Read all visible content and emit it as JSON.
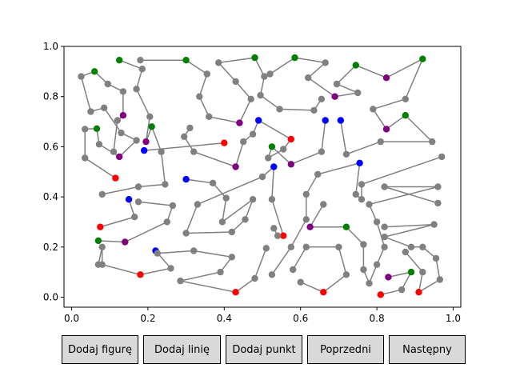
{
  "buttons": {
    "add_shape": "Dodaj figurę",
    "add_line": "Dodaj linię",
    "add_point": "Dodaj punkt",
    "prev": "Poprzedni",
    "next": "Następny"
  },
  "chart_data": {
    "type": "scatter",
    "title": "",
    "xlabel": "",
    "ylabel": "",
    "xlim": [
      -0.02,
      1.02
    ],
    "ylim": [
      -0.04,
      1.0
    ],
    "x_ticks": [
      "0.0",
      "0.2",
      "0.4",
      "0.6",
      "0.8",
      "1.0"
    ],
    "y_ticks": [
      "0.0",
      "0.2",
      "0.4",
      "0.6",
      "0.8",
      "1.0"
    ],
    "line_color": "#808080",
    "point_colors": {
      "k": "#808080",
      "g": "#008000",
      "p": "#800080",
      "r": "#ff0000",
      "b": "#0000ff"
    },
    "paths": [
      [
        [
          0.115,
          0.475,
          "r"
        ],
        [
          0.035,
          0.555,
          "k"
        ],
        [
          0.035,
          0.67,
          "k"
        ],
        [
          0.066,
          0.672,
          "g"
        ],
        [
          0.072,
          0.61,
          "k"
        ],
        [
          0.125,
          0.56,
          "p"
        ],
        [
          0.17,
          0.625,
          "k"
        ],
        [
          0.13,
          0.655,
          "k"
        ],
        [
          0.085,
          0.755,
          "k"
        ],
        [
          0.05,
          0.74,
          "k"
        ],
        [
          0.025,
          0.88,
          "k"
        ],
        [
          0.06,
          0.9,
          "g"
        ],
        [
          0.095,
          0.85,
          "k"
        ],
        [
          0.135,
          0.82,
          "k"
        ],
        [
          0.135,
          0.725,
          "p"
        ],
        [
          0.12,
          0.705,
          "k"
        ],
        [
          0.11,
          0.58,
          "k"
        ]
      ],
      [
        [
          0.125,
          0.945,
          "g"
        ],
        [
          0.185,
          0.91,
          "k"
        ],
        [
          0.17,
          0.83,
          "k"
        ],
        [
          0.205,
          0.72,
          "k"
        ],
        [
          0.195,
          0.62,
          "p"
        ],
        [
          0.21,
          0.68,
          "g"
        ],
        [
          0.235,
          0.58,
          "k"
        ],
        [
          0.245,
          0.45,
          "k"
        ],
        [
          0.175,
          0.44,
          "k"
        ],
        [
          0.08,
          0.41,
          "k"
        ]
      ],
      [
        [
          0.18,
          0.945,
          "k"
        ],
        [
          0.3,
          0.945,
          "g"
        ],
        [
          0.355,
          0.89,
          "k"
        ],
        [
          0.335,
          0.8,
          "k"
        ],
        [
          0.36,
          0.72,
          "k"
        ],
        [
          0.44,
          0.695,
          "p"
        ],
        [
          0.47,
          0.79,
          "k"
        ],
        [
          0.43,
          0.86,
          "k"
        ],
        [
          0.385,
          0.935,
          "k"
        ],
        [
          0.48,
          0.955,
          "g"
        ],
        [
          0.505,
          0.88,
          "k"
        ],
        [
          0.495,
          0.805,
          "k"
        ],
        [
          0.545,
          0.75,
          "k"
        ],
        [
          0.635,
          0.745,
          "k"
        ],
        [
          0.655,
          0.79,
          "k"
        ]
      ],
      [
        [
          0.52,
          0.89,
          "k"
        ],
        [
          0.585,
          0.955,
          "g"
        ],
        [
          0.665,
          0.935,
          "k"
        ],
        [
          0.62,
          0.875,
          "k"
        ],
        [
          0.69,
          0.8,
          "p"
        ],
        [
          0.75,
          0.815,
          "k"
        ],
        [
          0.695,
          0.85,
          "k"
        ],
        [
          0.745,
          0.925,
          "g"
        ],
        [
          0.825,
          0.875,
          "p"
        ],
        [
          0.92,
          0.95,
          "g"
        ],
        [
          0.875,
          0.79,
          "k"
        ],
        [
          0.79,
          0.75,
          "k"
        ],
        [
          0.825,
          0.67,
          "p"
        ],
        [
          0.875,
          0.725,
          "g"
        ],
        [
          0.945,
          0.62,
          "k"
        ],
        [
          0.81,
          0.62,
          "k"
        ],
        [
          0.72,
          0.57,
          "k"
        ],
        [
          0.705,
          0.705,
          "b"
        ]
      ],
      [
        [
          0.31,
          0.675,
          "k"
        ],
        [
          0.295,
          0.64,
          "k"
        ],
        [
          0.32,
          0.58,
          "k"
        ],
        [
          0.43,
          0.52,
          "p"
        ],
        [
          0.45,
          0.62,
          "k"
        ],
        [
          0.475,
          0.65,
          "k"
        ],
        [
          0.49,
          0.705,
          "b"
        ],
        [
          0.575,
          0.63,
          "r"
        ],
        [
          0.555,
          0.59,
          "k"
        ],
        [
          0.515,
          0.555,
          "k"
        ],
        [
          0.525,
          0.6,
          "g"
        ],
        [
          0.575,
          0.53,
          "p"
        ],
        [
          0.655,
          0.58,
          "k"
        ],
        [
          0.665,
          0.705,
          "b"
        ]
      ],
      [
        [
          0.19,
          0.585,
          "b"
        ],
        [
          0.4,
          0.615,
          "r"
        ]
      ],
      [
        [
          0.15,
          0.39,
          "b"
        ],
        [
          0.165,
          0.32,
          "k"
        ],
        [
          0.075,
          0.28,
          "r"
        ]
      ],
      [
        [
          0.07,
          0.225,
          "g"
        ],
        [
          0.14,
          0.22,
          "p"
        ],
        [
          0.25,
          0.3,
          "k"
        ],
        [
          0.265,
          0.365,
          "k"
        ],
        [
          0.175,
          0.38,
          "k"
        ]
      ],
      [
        [
          0.07,
          0.13,
          "k"
        ],
        [
          0.08,
          0.2,
          "k"
        ],
        [
          0.08,
          0.13,
          "k"
        ],
        [
          0.18,
          0.09,
          "r"
        ],
        [
          0.26,
          0.115,
          "k"
        ],
        [
          0.22,
          0.185,
          "b"
        ]
      ],
      [
        [
          0.3,
          0.47,
          "b"
        ],
        [
          0.37,
          0.455,
          "k"
        ],
        [
          0.405,
          0.395,
          "k"
        ],
        [
          0.395,
          0.3,
          "k"
        ],
        [
          0.475,
          0.39,
          "k"
        ],
        [
          0.455,
          0.31,
          "k"
        ],
        [
          0.42,
          0.26,
          "k"
        ],
        [
          0.3,
          0.255,
          "k"
        ],
        [
          0.33,
          0.37,
          "k"
        ],
        [
          0.5,
          0.48,
          "k"
        ],
        [
          0.53,
          0.52,
          "b"
        ],
        [
          0.525,
          0.39,
          "k"
        ],
        [
          0.555,
          0.245,
          "r"
        ]
      ],
      [
        [
          0.225,
          0.175,
          "k"
        ],
        [
          0.32,
          0.185,
          "k"
        ],
        [
          0.42,
          0.16,
          "k"
        ],
        [
          0.39,
          0.1,
          "k"
        ],
        [
          0.285,
          0.065,
          "k"
        ],
        [
          0.43,
          0.02,
          "r"
        ],
        [
          0.48,
          0.075,
          "k"
        ],
        [
          0.51,
          0.195,
          "k"
        ]
      ],
      [
        [
          0.53,
          0.275,
          "k"
        ],
        [
          0.54,
          0.245,
          "k"
        ]
      ],
      [
        [
          0.525,
          0.09,
          "k"
        ],
        [
          0.575,
          0.2,
          "k"
        ],
        [
          0.615,
          0.31,
          "k"
        ],
        [
          0.615,
          0.41,
          "k"
        ],
        [
          0.645,
          0.49,
          "k"
        ],
        [
          0.755,
          0.535,
          "b"
        ],
        [
          0.745,
          0.41,
          "k"
        ],
        [
          0.76,
          0.39,
          "k"
        ],
        [
          0.76,
          0.45,
          "k"
        ],
        [
          0.97,
          0.56,
          "k"
        ]
      ],
      [
        [
          0.66,
          0.37,
          "k"
        ],
        [
          0.625,
          0.28,
          "p"
        ],
        [
          0.72,
          0.28,
          "g"
        ],
        [
          0.765,
          0.21,
          "k"
        ],
        [
          0.765,
          0.11,
          "k"
        ],
        [
          0.78,
          0.055,
          "k"
        ],
        [
          0.8,
          0.13,
          "k"
        ],
        [
          0.82,
          0.2,
          "k"
        ],
        [
          0.8,
          0.3,
          "k"
        ],
        [
          0.78,
          0.37,
          "k"
        ],
        [
          0.96,
          0.44,
          "k"
        ],
        [
          0.82,
          0.44,
          "k"
        ],
        [
          0.96,
          0.375,
          "k"
        ]
      ],
      [
        [
          0.58,
          0.11,
          "k"
        ],
        [
          0.615,
          0.2,
          "k"
        ],
        [
          0.7,
          0.2,
          "k"
        ],
        [
          0.72,
          0.09,
          "k"
        ],
        [
          0.66,
          0.02,
          "r"
        ],
        [
          0.6,
          0.06,
          "k"
        ]
      ],
      [
        [
          0.83,
          0.08,
          "p"
        ],
        [
          0.89,
          0.1,
          "g"
        ],
        [
          0.865,
          0.03,
          "k"
        ],
        [
          0.81,
          0.01,
          "r"
        ]
      ],
      [
        [
          0.82,
          0.28,
          "k"
        ],
        [
          0.95,
          0.29,
          "k"
        ],
        [
          0.82,
          0.24,
          "k"
        ],
        [
          0.89,
          0.2,
          "k"
        ],
        [
          0.92,
          0.2,
          "k"
        ],
        [
          0.955,
          0.155,
          "k"
        ],
        [
          0.965,
          0.07,
          "k"
        ],
        [
          0.91,
          0.02,
          "r"
        ],
        [
          0.92,
          0.1,
          "k"
        ],
        [
          0.875,
          0.18,
          "k"
        ]
      ]
    ]
  }
}
